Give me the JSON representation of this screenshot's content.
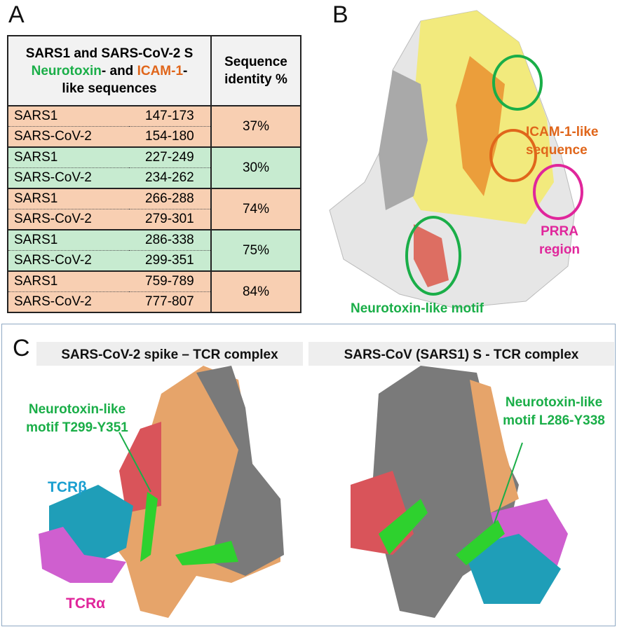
{
  "panel_a": {
    "label": "A",
    "header": {
      "line1": "SARS1 and SARS-CoV-2 S",
      "neurotoxin": "Neurotoxin",
      "and": "- and ",
      "icam": "ICAM-1",
      "dash": "-",
      "line3": "like sequences",
      "identity": "Sequence identity %"
    },
    "groups": [
      {
        "rows": [
          [
            "SARS1",
            "147-173"
          ],
          [
            "SARS-CoV-2",
            "154-180"
          ]
        ],
        "identity": "37%"
      },
      {
        "rows": [
          [
            "SARS1",
            "227-249"
          ],
          [
            "SARS-CoV-2",
            "234-262"
          ]
        ],
        "identity": "30%"
      },
      {
        "rows": [
          [
            "SARS1",
            "266-288"
          ],
          [
            "SARS-CoV-2",
            "279-301"
          ]
        ],
        "identity": "74%"
      },
      {
        "rows": [
          [
            "SARS1",
            "286-338"
          ],
          [
            "SARS-CoV-2",
            "299-351"
          ]
        ],
        "identity": "75%"
      },
      {
        "rows": [
          [
            "SARS1",
            "759-789"
          ],
          [
            "SARS-CoV-2",
            "777-807"
          ]
        ],
        "identity": "84%"
      }
    ]
  },
  "panel_b": {
    "label": "B",
    "icam": [
      "ICAM-1-like",
      "sequence"
    ],
    "prra": [
      "PRRA",
      "region"
    ],
    "neurotoxin": "Neurotoxin-like motif"
  },
  "panel_c": {
    "label": "C",
    "left_title": "SARS-CoV-2 spike – TCR complex",
    "right_title": "SARS-CoV (SARS1) S - TCR complex",
    "left_motif": [
      "Neurotoxin-like",
      "motif T299-Y351"
    ],
    "tcr_beta": "TCRβ",
    "tcr_alpha": "TCRα",
    "right_motif": [
      "Neurotoxin-like",
      "motif L286-Y338"
    ]
  }
}
